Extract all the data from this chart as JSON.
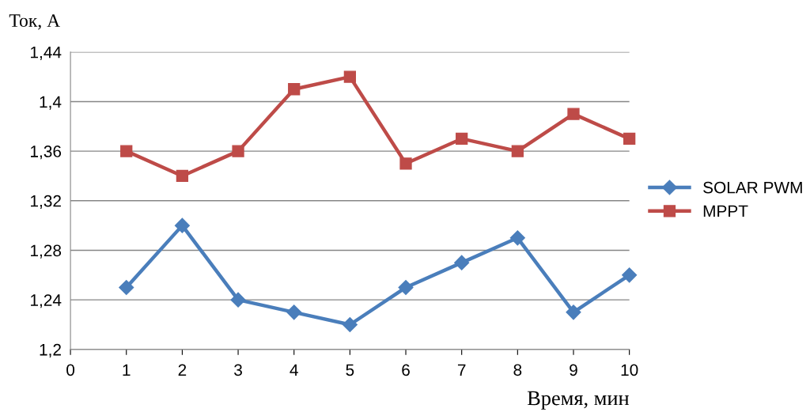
{
  "chart_data": {
    "type": "line",
    "xlabel": "Время, мин",
    "ylabel": "Ток, А",
    "x": [
      1,
      2,
      3,
      4,
      5,
      6,
      7,
      8,
      9,
      10
    ],
    "series": [
      {
        "name": "SOLAR PWM",
        "color": "#4a7ebb",
        "marker": "diamond",
        "values": [
          1.25,
          1.3,
          1.24,
          1.23,
          1.22,
          1.25,
          1.27,
          1.29,
          1.23,
          1.26
        ]
      },
      {
        "name": "MPPT",
        "color": "#be4b48",
        "marker": "square",
        "values": [
          1.36,
          1.34,
          1.36,
          1.41,
          1.42,
          1.35,
          1.37,
          1.36,
          1.39,
          1.37
        ]
      }
    ],
    "xlim": [
      0,
      10
    ],
    "xticks": [
      0,
      1,
      2,
      3,
      4,
      5,
      6,
      7,
      8,
      9,
      10
    ],
    "ylim": [
      1.2,
      1.44
    ],
    "yticks": [
      {
        "value": 1.2,
        "label": "1,2"
      },
      {
        "value": 1.24,
        "label": "1,24"
      },
      {
        "value": 1.28,
        "label": "1,28"
      },
      {
        "value": 1.32,
        "label": "1,32"
      },
      {
        "value": 1.36,
        "label": "1,36"
      },
      {
        "value": 1.4,
        "label": "1,4"
      },
      {
        "value": 1.44,
        "label": "1,44"
      }
    ],
    "grid": "y",
    "legend": "right",
    "line_style": "solid"
  }
}
